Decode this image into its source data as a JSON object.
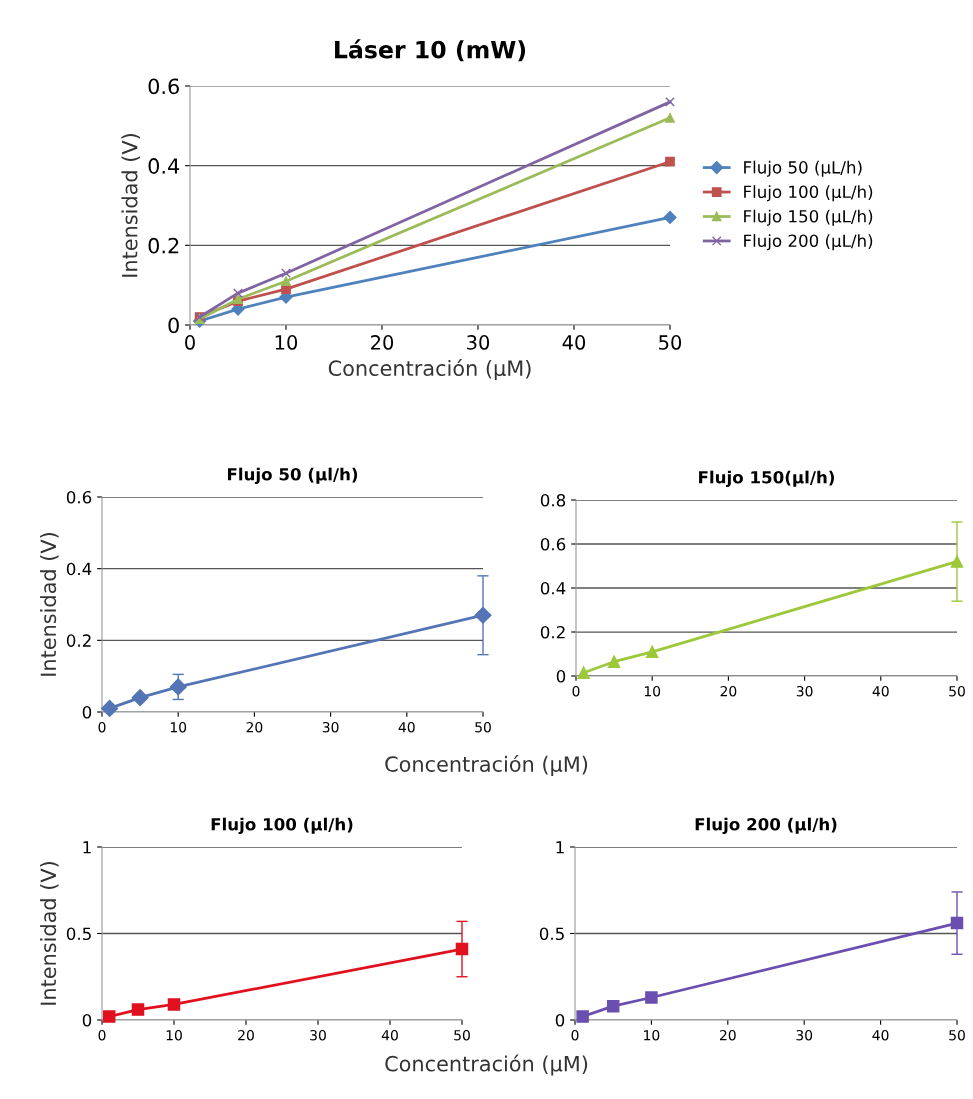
{
  "chart_data": [
    {
      "type": "line",
      "title": "Láser 10 (mW)",
      "xlabel": "Concentración (µM)",
      "ylabel": "Intensidad (V)",
      "x": [
        1,
        5,
        10,
        50
      ],
      "xlim": [
        0,
        50
      ],
      "xticks": [
        0,
        10,
        20,
        30,
        40,
        50
      ],
      "ylim": [
        0,
        0.6
      ],
      "yticks": [
        0,
        0.2,
        0.4,
        0.6
      ],
      "grid": "y",
      "legend": "right",
      "series": [
        {
          "name": "Flujo 50 (µL/h)",
          "color": "#4f81bd",
          "marker": "diamond",
          "values": [
            0.01,
            0.04,
            0.07,
            0.27
          ]
        },
        {
          "name": "Flujo 100 (µL/h)",
          "color": "#c0504d",
          "marker": "square",
          "values": [
            0.02,
            0.06,
            0.09,
            0.41
          ]
        },
        {
          "name": "Flujo 150 (µL/h)",
          "color": "#9bbb59",
          "marker": "triangle",
          "values": [
            0.015,
            0.065,
            0.11,
            0.52
          ]
        },
        {
          "name": "Flujo 200 (µL/h)",
          "color": "#8064a2",
          "marker": "cross",
          "values": [
            0.02,
            0.08,
            0.13,
            0.56
          ]
        }
      ]
    },
    {
      "type": "line",
      "title": "Flujo 50 (µl/h)",
      "ylabel": "Intensidad (V)",
      "xlabel": "Concentración (µM)",
      "x": [
        1,
        5,
        10,
        50
      ],
      "xlim": [
        0,
        50
      ],
      "xticks": [
        0,
        10,
        20,
        30,
        40,
        50
      ],
      "ylim": [
        0,
        0.6
      ],
      "yticks": [
        0,
        0.2,
        0.4,
        0.6
      ],
      "grid": "y",
      "marker": "diamond",
      "series": [
        {
          "color": "#5375b5",
          "values": [
            0.01,
            0.04,
            0.07,
            0.27
          ],
          "errors": [
            null,
            null,
            0.035,
            0.11
          ]
        }
      ]
    },
    {
      "type": "line",
      "title": "Flujo 150(µl/h)",
      "x": [
        1,
        5,
        10,
        50
      ],
      "xlim": [
        0,
        50
      ],
      "xticks": [
        0,
        10,
        20,
        30,
        40,
        50
      ],
      "ylim": [
        0,
        0.8
      ],
      "yticks": [
        0,
        0.2,
        0.4,
        0.6,
        0.8
      ],
      "grid": "y",
      "marker": "triangle",
      "series": [
        {
          "color": "#9cc83a",
          "values": [
            0.015,
            0.065,
            0.11,
            0.52
          ],
          "errors": [
            null,
            null,
            null,
            0.18
          ]
        }
      ]
    },
    {
      "type": "line",
      "title": "Flujo 100 (µl/h)",
      "ylabel": "Intensidad (V)",
      "xlabel": "Concentración (µM)",
      "x": [
        1,
        5,
        10,
        50
      ],
      "xlim": [
        0,
        50
      ],
      "xticks": [
        0,
        10,
        20,
        30,
        40,
        50
      ],
      "ylim": [
        0,
        1
      ],
      "yticks": [
        0,
        0.5,
        1
      ],
      "grid": "y",
      "marker": "square",
      "series": [
        {
          "color": "#e0101e",
          "values": [
            0.02,
            0.06,
            0.09,
            0.41
          ],
          "errors": [
            null,
            null,
            null,
            0.16
          ]
        }
      ]
    },
    {
      "type": "line",
      "title": "Flujo 200 (µl/h)",
      "x": [
        1,
        5,
        10,
        50
      ],
      "xlim": [
        0,
        50
      ],
      "xticks": [
        0,
        10,
        20,
        30,
        40,
        50
      ],
      "ylim": [
        0,
        1
      ],
      "yticks": [
        0,
        0.5,
        1
      ],
      "grid": "y",
      "marker": "square",
      "series": [
        {
          "color": "#6a4fb0",
          "values": [
            0.02,
            0.08,
            0.13,
            0.56
          ],
          "errors": [
            null,
            null,
            null,
            0.18
          ]
        }
      ]
    }
  ]
}
